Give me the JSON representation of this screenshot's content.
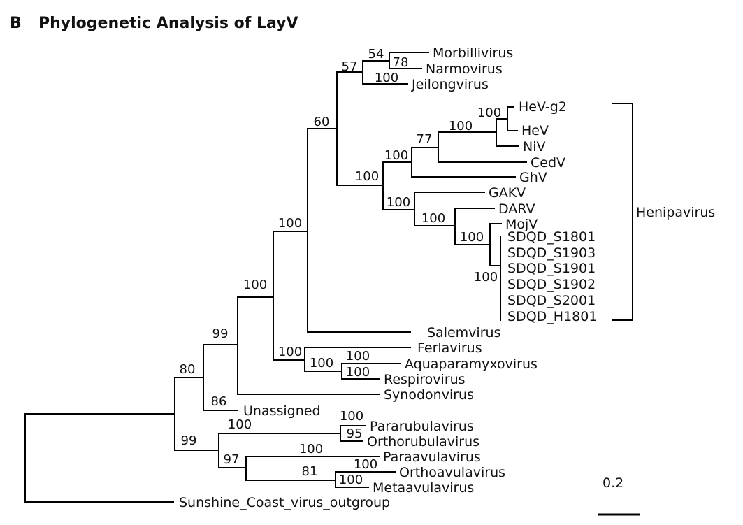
{
  "panel_letter": "B",
  "title": "Phylogenetic Analysis of LayV",
  "colors": {
    "novel_rodent": "#1a73c0",
    "novel_human": "#d2552e",
    "default": "#111111"
  },
  "tips": {
    "morbillivirus": "Morbillivirus",
    "narmovirus": "Narmovirus",
    "jeilongvirus": "Jeilongvirus",
    "hev_g2": "HeV-g2",
    "hev": "HeV",
    "niv": "NiV",
    "cedv": "CedV",
    "ghv": "GhV",
    "gakv": "GAKV",
    "darv": "DARV",
    "mojv": "MojV",
    "sdqd_s1801": "SDQD_S1801",
    "sdqd_s1903": "SDQD_S1903",
    "sdqd_s1901": "SDQD_S1901",
    "sdqd_s1902": "SDQD_S1902",
    "sdqd_s2001": "SDQD_S2001",
    "sdqd_h1801": "SDQD_H1801",
    "salemvirus": "Salemvirus",
    "ferlavirus": "Ferlavirus",
    "aquaparamyxovirus": "Aquaparamyxovirus",
    "respirovirus": "Respirovirus",
    "synodonvirus": "Synodonvirus",
    "unassigned": "Unassigned",
    "pararubulavirus": "Pararubulavirus",
    "orthorubulavirus": "Orthorubulavirus",
    "paraavulavirus": "Paraavulavirus",
    "orthoavulavirus": "Orthoavulavirus",
    "metaavulavirus": "Metaavulavirus",
    "outgroup": "Sunshine_Coast_virus_outgroup"
  },
  "bootstrap": [
    "54",
    "78",
    "57",
    "100",
    "60",
    "100",
    "100",
    "77",
    "100",
    "100",
    "100",
    "100",
    "100",
    "100",
    "100",
    "100",
    "99",
    "80",
    "86",
    "100",
    "100",
    "100",
    "100",
    "100",
    "99",
    "100",
    "95",
    "100",
    "97",
    "81",
    "100",
    "100"
  ],
  "clade_label": "Henipavirus",
  "scale_bar": "0.2"
}
